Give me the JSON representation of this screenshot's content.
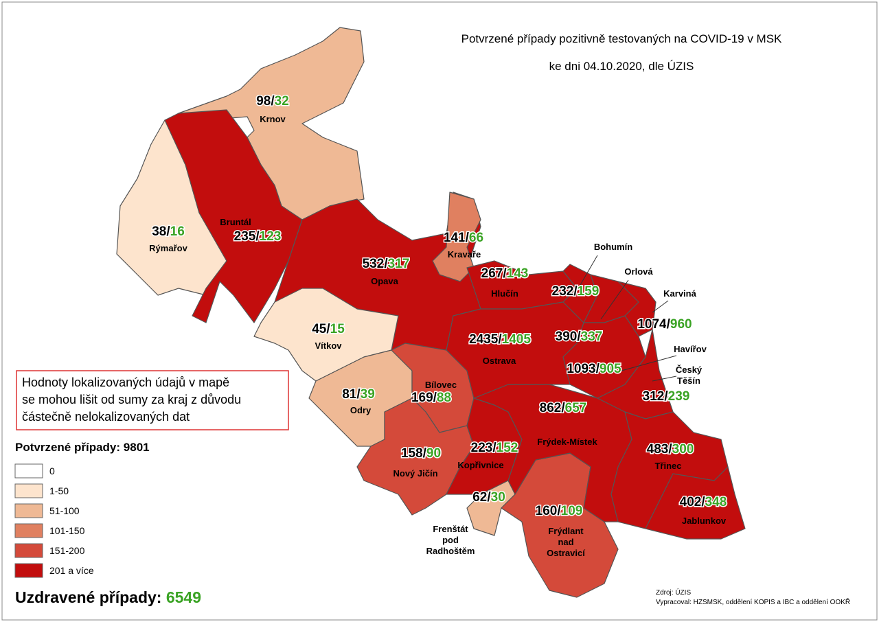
{
  "title": [
    "Potvrzené případy pozitivně testovaných na COVID-19 v MSK",
    "ke dni 04.10.2020, dle ÚZIS"
  ],
  "separator": "/",
  "regions": [
    {
      "name": [
        "Krnov"
      ],
      "confirmed": 98,
      "recovered": 32,
      "color": "#efb995"
    },
    {
      "name": [
        "Rýmařov"
      ],
      "confirmed": 38,
      "recovered": 16,
      "color": "#fde4cd"
    },
    {
      "name": [
        "Bruntál"
      ],
      "confirmed": 235,
      "recovered": 123,
      "color": "#c20d0d"
    },
    {
      "name": [
        "Opava"
      ],
      "confirmed": 532,
      "recovered": 317,
      "color": "#c20d0d"
    },
    {
      "name": [
        "Kravaře"
      ],
      "confirmed": 141,
      "recovered": 66,
      "color": "#e08060"
    },
    {
      "name": [
        "Hlučín"
      ],
      "confirmed": 267,
      "recovered": 143,
      "color": "#c20d0d"
    },
    {
      "name": [
        "Vítkov"
      ],
      "confirmed": 45,
      "recovered": 15,
      "color": "#fde4cd"
    },
    {
      "name": [
        "Odry"
      ],
      "confirmed": 81,
      "recovered": 39,
      "color": "#efb995"
    },
    {
      "name": [
        "Bílovec"
      ],
      "confirmed": 169,
      "recovered": 88,
      "color": "#d44a3a"
    },
    {
      "name": [
        "Nový Jičín"
      ],
      "confirmed": 158,
      "recovered": 90,
      "color": "#d44a3a"
    },
    {
      "name": [
        "Kopřivnice"
      ],
      "confirmed": 223,
      "recovered": 152,
      "color": "#c20d0d"
    },
    {
      "name": [
        "Frenštát",
        "pod",
        "Radhoštěm"
      ],
      "confirmed": 62,
      "recovered": 30,
      "color": "#efb995"
    },
    {
      "name": [
        "Frýdlant",
        "nad",
        "Ostravicí"
      ],
      "confirmed": 160,
      "recovered": 109,
      "color": "#d44a3a"
    },
    {
      "name": [
        "Frýdek-Místek"
      ],
      "confirmed": 862,
      "recovered": 657,
      "color": "#c20d0d"
    },
    {
      "name": [
        "Ostrava"
      ],
      "confirmed": 2435,
      "recovered": 1405,
      "color": "#c20d0d"
    },
    {
      "name": [
        "Bohumín"
      ],
      "confirmed": 232,
      "recovered": 159,
      "color": "#c20d0d"
    },
    {
      "name": [
        "Orlová"
      ],
      "confirmed": 390,
      "recovered": 337,
      "color": "#c20d0d"
    },
    {
      "name": [
        "Karviná"
      ],
      "confirmed": 1074,
      "recovered": 960,
      "color": "#c20d0d"
    },
    {
      "name": [
        "Havířov"
      ],
      "confirmed": 1093,
      "recovered": 905,
      "color": "#c20d0d"
    },
    {
      "name": [
        "Český",
        "Těšín"
      ],
      "confirmed": 312,
      "recovered": 239,
      "color": "#c20d0d"
    },
    {
      "name": [
        "Třinec"
      ],
      "confirmed": 483,
      "recovered": 300,
      "color": "#c20d0d"
    },
    {
      "name": [
        "Jablunkov"
      ],
      "confirmed": 402,
      "recovered": 348,
      "color": "#c20d0d"
    }
  ],
  "note": [
    "Hodnoty lokalizovaných údajů v mapě",
    "se mohou lišit od sumy za kraj z důvodu",
    "částečně nelokalizovaných dat"
  ],
  "legend": {
    "title": "Potvrzené případy:",
    "total": 9801,
    "entries": [
      {
        "label": "0",
        "color": "#ffffff"
      },
      {
        "label": "1-50",
        "color": "#fde4cd"
      },
      {
        "label": "51-100",
        "color": "#efb995"
      },
      {
        "label": "101-150",
        "color": "#e08060"
      },
      {
        "label": "151-200",
        "color": "#d44a3a"
      },
      {
        "label": "201 a více",
        "color": "#c20d0d"
      }
    ]
  },
  "recovered": {
    "label": "Uzdravené případy:",
    "total": 6549
  },
  "source": [
    "Zdroj: ÚZIS",
    "Vypracoval: HZSMSK, oddělení KOPIS a IBC a oddělení OOKŘ"
  ]
}
